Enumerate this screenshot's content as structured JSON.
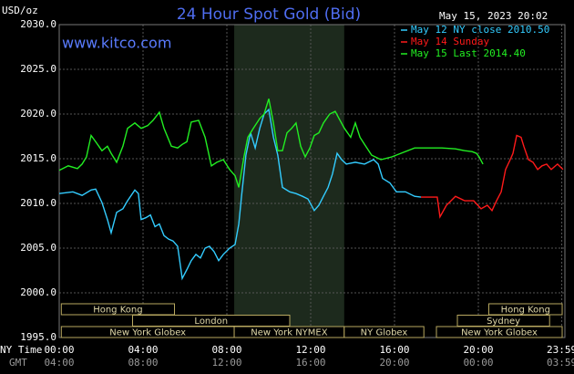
{
  "chart_data": {
    "type": "line",
    "title": "24 Hour Spot Gold (Bid)",
    "source": "www.kitco.com",
    "timestamp": "May 15, 2023 20:02",
    "y_unit": "USD/oz",
    "x_axis_label": "NY Time",
    "x2_axis_label": "GMT",
    "grid": true,
    "xlim": [
      0,
      24.13
    ],
    "ylim": [
      1995,
      2030
    ],
    "yticks": [
      {
        "value": 1995,
        "label": "1995.0"
      },
      {
        "value": 2000,
        "label": "2000.0"
      },
      {
        "value": 2005,
        "label": "2005.0"
      },
      {
        "value": 2010,
        "label": "2010.0"
      },
      {
        "value": 2015,
        "label": "2015.0"
      },
      {
        "value": 2020,
        "label": "2020.0"
      },
      {
        "value": 2025,
        "label": "2025.0"
      },
      {
        "value": 2030,
        "label": "2030.0"
      }
    ],
    "xticks": [
      {
        "value": 0,
        "label": "00:00"
      },
      {
        "value": 4,
        "label": "04:00"
      },
      {
        "value": 8,
        "label": "08:00"
      },
      {
        "value": 12,
        "label": "12:00"
      },
      {
        "value": 16,
        "label": "16:00"
      },
      {
        "value": 20,
        "label": "20:00"
      },
      {
        "value": 23.98,
        "label": "23:59"
      }
    ],
    "x2ticks": [
      {
        "value": 0,
        "label": "04:00"
      },
      {
        "value": 4,
        "label": "08:00"
      },
      {
        "value": 8,
        "label": "12:00"
      },
      {
        "value": 12,
        "label": "16:00"
      },
      {
        "value": 16,
        "label": "20:00"
      },
      {
        "value": 20,
        "label": "00:00"
      },
      {
        "value": 23.98,
        "label": "03:59"
      }
    ],
    "sessions": [
      {
        "name": "Hong Kong",
        "start": 0.1,
        "end": 5.5,
        "row": 0
      },
      {
        "name": "London",
        "start": 3.5,
        "end": 11.0,
        "row": 1
      },
      {
        "name": "New York Globex",
        "start": 0.1,
        "end": 8.35,
        "row": 2
      },
      {
        "name": "New York NYMEX",
        "start": 8.35,
        "end": 13.6,
        "row": 2
      },
      {
        "name": "NY Globex",
        "start": 13.6,
        "end": 17.4,
        "row": 2
      },
      {
        "name": "Hong Kong",
        "start": 20.5,
        "end": 24.0,
        "row": 0
      },
      {
        "name": "Sydney",
        "start": 19.0,
        "end": 23.4,
        "row": 1
      },
      {
        "name": "New York Globex",
        "start": 18.0,
        "end": 24.0,
        "row": 2
      }
    ],
    "series": [
      {
        "name": "May 12 NY close 2010.50",
        "color": "#33ccff",
        "x": [
          0,
          0.65,
          1.09,
          1.52,
          1.74,
          2.04,
          2.3,
          2.48,
          2.74,
          3.04,
          3.26,
          3.61,
          3.78,
          3.91,
          4.13,
          4.35,
          4.57,
          4.78,
          5.0,
          5.22,
          5.43,
          5.65,
          5.87,
          6.09,
          6.3,
          6.52,
          6.74,
          6.96,
          7.17,
          7.39,
          7.61,
          7.83,
          8.13,
          8.39,
          8.57,
          8.7,
          8.91,
          9.13,
          9.35,
          9.57,
          9.78,
          10.0,
          10.22,
          10.43,
          10.65,
          11.0,
          11.3,
          11.61,
          11.87,
          12.17,
          12.39,
          12.61,
          12.83,
          13.04,
          13.26,
          13.48,
          13.7,
          14.13,
          14.57,
          15.0,
          15.22,
          15.43,
          15.78,
          16.09,
          16.52,
          16.96,
          17.26
        ],
        "values": [
          2011.1,
          2011.3,
          2010.9,
          2011.5,
          2011.6,
          2010.1,
          2008.2,
          2006.7,
          2009.0,
          2009.4,
          2010.3,
          2011.5,
          2011.1,
          2008.2,
          2008.4,
          2008.7,
          2007.4,
          2007.7,
          2006.4,
          2006.0,
          2005.8,
          2005.2,
          2001.6,
          2002.6,
          2003.6,
          2004.3,
          2003.9,
          2005.0,
          2005.2,
          2004.6,
          2003.6,
          2004.3,
          2005.0,
          2005.4,
          2007.7,
          2010.8,
          2015.4,
          2017.9,
          2016.2,
          2018.4,
          2020.0,
          2020.5,
          2017.4,
          2015.4,
          2011.8,
          2011.3,
          2011.1,
          2010.8,
          2010.5,
          2009.2,
          2009.8,
          2010.8,
          2011.8,
          2013.3,
          2015.6,
          2014.9,
          2014.4,
          2014.6,
          2014.4,
          2014.9,
          2014.4,
          2012.8,
          2012.3,
          2011.3,
          2011.3,
          2010.8,
          2010.7
        ]
      },
      {
        "name": "May 14 Sunday",
        "color": "#ff1a1a",
        "x": [
          17.26,
          18.04,
          18.17,
          18.48,
          18.91,
          19.35,
          19.78,
          20.13,
          20.43,
          20.65,
          20.87,
          21.09,
          21.3,
          21.52,
          21.65,
          21.83,
          22.04,
          22.17,
          22.39,
          22.61,
          22.83,
          23.04,
          23.26,
          23.48,
          23.78,
          24.04
        ],
        "values": [
          2010.7,
          2010.7,
          2008.5,
          2009.8,
          2010.8,
          2010.3,
          2010.3,
          2009.4,
          2009.8,
          2009.2,
          2010.3,
          2011.3,
          2013.8,
          2014.9,
          2015.6,
          2017.6,
          2017.4,
          2016.4,
          2014.9,
          2014.6,
          2013.8,
          2014.2,
          2014.4,
          2013.8,
          2014.4,
          2013.8
        ]
      },
      {
        "name": "May 15 Last 2014.40",
        "color": "#22ee22",
        "x": [
          0,
          0.43,
          0.87,
          1.09,
          1.3,
          1.52,
          1.74,
          2.04,
          2.3,
          2.48,
          2.74,
          3.04,
          3.26,
          3.61,
          3.91,
          4.22,
          4.48,
          4.78,
          5.0,
          5.35,
          5.65,
          5.87,
          6.09,
          6.3,
          6.65,
          6.96,
          7.26,
          7.52,
          7.83,
          8.13,
          8.39,
          8.57,
          8.83,
          9.0,
          9.26,
          9.57,
          9.78,
          10.0,
          10.22,
          10.43,
          10.65,
          10.87,
          11.09,
          11.3,
          11.52,
          11.74,
          11.96,
          12.17,
          12.39,
          12.61,
          12.91,
          13.17,
          13.35,
          13.61,
          13.91,
          14.13,
          14.35,
          14.57,
          14.91,
          15.35,
          15.87,
          16.3,
          16.96,
          17.61,
          18.26,
          18.91,
          19.35,
          19.7,
          19.91,
          20.04,
          20.22
        ],
        "values": [
          2013.7,
          2014.2,
          2013.9,
          2014.4,
          2015.2,
          2017.6,
          2016.9,
          2015.9,
          2016.4,
          2015.6,
          2014.6,
          2016.4,
          2018.4,
          2019.0,
          2018.4,
          2018.7,
          2019.3,
          2020.2,
          2018.4,
          2016.4,
          2016.2,
          2016.6,
          2016.9,
          2019.1,
          2019.3,
          2017.4,
          2014.2,
          2014.6,
          2014.9,
          2013.8,
          2013.1,
          2011.8,
          2015.4,
          2017.4,
          2018.4,
          2019.5,
          2020.0,
          2021.7,
          2019.0,
          2015.9,
          2015.9,
          2017.9,
          2018.4,
          2019.0,
          2016.4,
          2015.2,
          2016.2,
          2017.6,
          2017.9,
          2019.0,
          2020.0,
          2020.3,
          2019.5,
          2018.4,
          2017.4,
          2019.0,
          2017.4,
          2016.6,
          2015.4,
          2014.9,
          2015.2,
          2015.6,
          2016.2,
          2016.2,
          2016.2,
          2016.1,
          2015.9,
          2015.8,
          2015.6,
          2015.2,
          2014.4
        ]
      }
    ]
  }
}
